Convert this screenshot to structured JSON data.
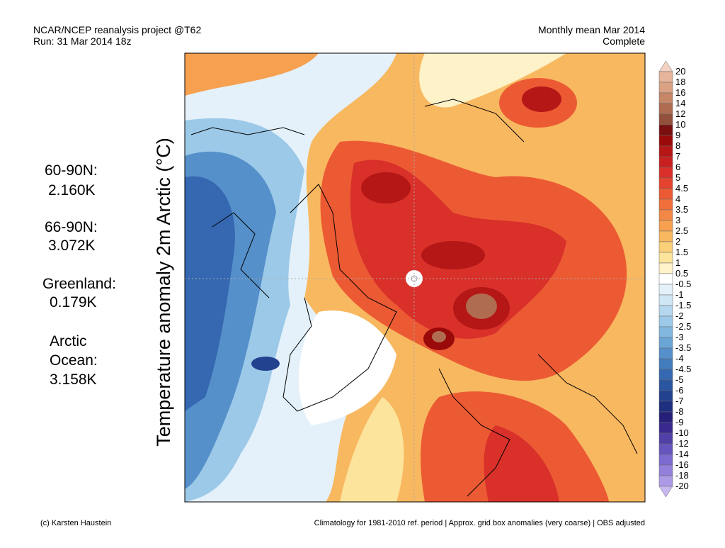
{
  "header": {
    "left": [
      "NCAR/NCEP reanalysis project @T62",
      "Run: 31 Mar 2014 18z"
    ],
    "right": [
      "Monthly mean Mar 2014",
      "Complete"
    ]
  },
  "stats": [
    "60-90N:",
    "2.160K",
    "66-90N:",
    "3.072K",
    "Greenland:",
    "0.179K",
    "Arctic",
    "Ocean:",
    "3.158K"
  ],
  "axis_label": "Temperature anomaly 2m Arctic (°C)",
  "colorbar": {
    "levels": [
      20,
      18,
      16,
      14,
      12,
      10,
      9,
      8,
      7,
      6,
      5,
      4.5,
      4,
      3.5,
      3,
      2.5,
      2,
      1.5,
      1,
      0.5,
      -0.5,
      -1,
      -1.5,
      -2,
      -2.5,
      -3,
      -3.5,
      -4,
      -4.5,
      -5,
      -6,
      -7,
      -8,
      -9,
      -10,
      -12,
      -14,
      -16,
      -18,
      -20
    ],
    "colors": [
      "#f4d0c0",
      "#e6b59c",
      "#d9a283",
      "#c68668",
      "#b06c50",
      "#93503a",
      "#7a1010",
      "#9b0a0a",
      "#b51616",
      "#c82020",
      "#d9302a",
      "#e5432e",
      "#ec5a34",
      "#f0703c",
      "#f38846",
      "#f6a050",
      "#f8b860",
      "#fad078",
      "#fce49c",
      "#fdf2c8",
      "#ffffff",
      "#e4f1fa",
      "#cfe6f5",
      "#b5d8ef",
      "#9cc9e8",
      "#82b8e0",
      "#6ba5d6",
      "#5590ca",
      "#437cbd",
      "#3568b0",
      "#2a55a0",
      "#22418f",
      "#1e2f80",
      "#27207a",
      "#3a2a90",
      "#5040a8",
      "#6655be",
      "#7c6ad0",
      "#9480dc",
      "#ad9ae6",
      "#c8b8f0"
    ]
  },
  "footer": {
    "left": "(c) Karsten Haustein",
    "right": "Climatology for 1981-2010 ref. period | Approx. grid box anomalies (very coarse) | OBS adjusted"
  }
}
